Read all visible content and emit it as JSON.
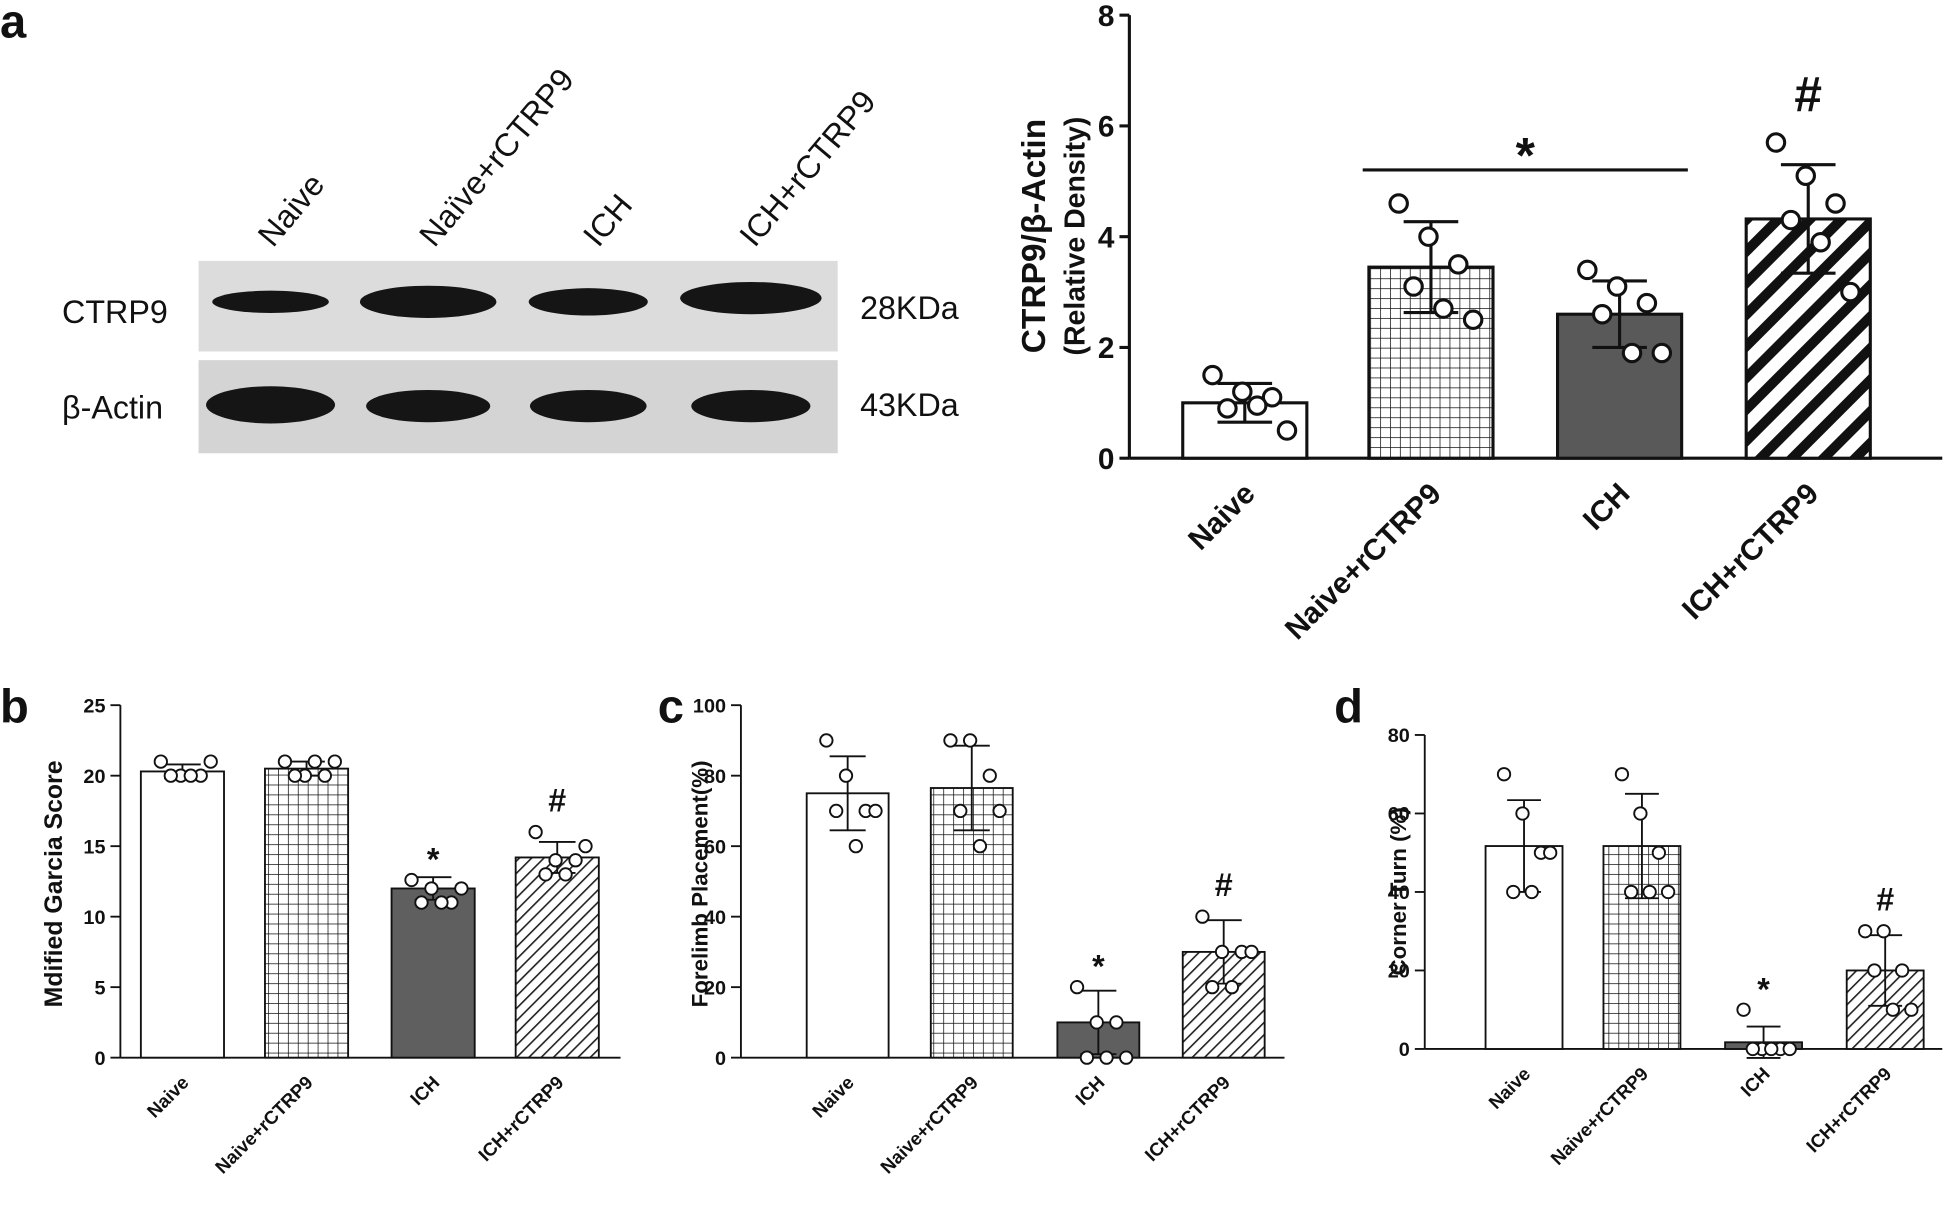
{
  "blot": {
    "panel_label": "a",
    "lanes": [
      "Naive",
      "Naïve+rCTRP9",
      "ICH",
      "ICH+rCTRP9"
    ],
    "rows": [
      {
        "name": "CTRP9",
        "size": "28KDa"
      },
      {
        "name": "β-Actin",
        "size": "43KDa"
      }
    ]
  },
  "chart_data": [
    {
      "type": "bar",
      "ylabel": [
        "CTRP9/β-Actin",
        "(Relative Density)"
      ],
      "categories": [
        "Naive",
        "Naive+rCTRP9",
        "ICH",
        "ICH+rCTRP9"
      ],
      "values": [
        1.0,
        3.45,
        2.6,
        4.32
      ],
      "errors": [
        0.35,
        0.82,
        0.6,
        0.98
      ],
      "points": [
        [
          1.5,
          1.2,
          1.1,
          0.9,
          0.95,
          0.5
        ],
        [
          4.6,
          4.0,
          3.5,
          3.1,
          2.7,
          2.5
        ],
        [
          3.4,
          3.1,
          2.8,
          2.6,
          1.9,
          1.9
        ],
        [
          5.7,
          5.1,
          4.6,
          4.3,
          3.9,
          3.0
        ]
      ],
      "fills": [
        "#ffffff",
        "grid",
        "#595959",
        "hatch-bold"
      ],
      "annotations": [
        {
          "text": "*",
          "categories": [
            "Naive+rCTRP9",
            "ICH"
          ]
        },
        {
          "text": "#",
          "categories": [
            "ICH+rCTRP9"
          ]
        }
      ],
      "ylim": [
        0,
        8
      ],
      "yticks": [
        0,
        2,
        4,
        6,
        8
      ]
    },
    {
      "type": "bar",
      "panel_label": "b",
      "ylabel": "Mdified Garcia  Score",
      "categories": [
        "Naive",
        "Naive+rCTRP9",
        "ICH",
        "ICH+rCTRP9"
      ],
      "values": [
        20.3,
        20.5,
        12.0,
        14.2
      ],
      "errors": [
        0.5,
        0.5,
        0.8,
        1.1
      ],
      "points": [
        [
          21,
          20,
          20,
          20,
          20,
          21
        ],
        [
          21,
          20,
          20,
          20,
          21,
          21
        ],
        [
          12.6,
          12,
          11,
          11,
          11,
          12
        ],
        [
          16,
          14,
          14,
          13,
          13,
          15
        ]
      ],
      "fills": [
        "#ffffff",
        "grid",
        "#5f5f5f",
        "hatch"
      ],
      "annotations": [
        {
          "text": "*",
          "categories": [
            "ICH"
          ]
        },
        {
          "text": "#",
          "categories": [
            "ICH+rCTRP9"
          ]
        }
      ],
      "ylim": [
        0,
        25
      ],
      "yticks": [
        0,
        5,
        10,
        15,
        20,
        25
      ]
    },
    {
      "type": "bar",
      "panel_label": "c",
      "ylabel": "Forelimb  Placement(%)",
      "categories": [
        "Naive",
        "Naive+rCTRP9",
        "ICH",
        "ICH+rCTRP9"
      ],
      "values": [
        75,
        76.5,
        10,
        30
      ],
      "errors": [
        10.5,
        12,
        9,
        9
      ],
      "points": [
        [
          90,
          80,
          70,
          70,
          60,
          70
        ],
        [
          90,
          90,
          80,
          70,
          60,
          70
        ],
        [
          20,
          10,
          10,
          0,
          0,
          0
        ],
        [
          40,
          30,
          30,
          20,
          20,
          30
        ]
      ],
      "fills": [
        "#ffffff",
        "grid",
        "#5f5f5f",
        "hatch"
      ],
      "annotations": [
        {
          "text": "*",
          "categories": [
            "ICH"
          ]
        },
        {
          "text": "#",
          "categories": [
            "ICH+rCTRP9"
          ]
        }
      ],
      "ylim": [
        0,
        100
      ],
      "yticks": [
        0,
        20,
        40,
        60,
        80,
        100
      ]
    },
    {
      "type": "bar",
      "panel_label": "d",
      "ylabel": "Corner Turn (%)",
      "categories": [
        "Naive",
        "Naive+rCTRP9",
        "ICH",
        "ICH+rCTRP9"
      ],
      "values": [
        51.7,
        51.7,
        1.7,
        20
      ],
      "errors": [
        11.7,
        13.3,
        4,
        9
      ],
      "points": [
        [
          70,
          60,
          50,
          40,
          40,
          50
        ],
        [
          70,
          60,
          50,
          40,
          40,
          40
        ],
        [
          10,
          0,
          0,
          0,
          0,
          0
        ],
        [
          30,
          30,
          20,
          20,
          10,
          10
        ]
      ],
      "fills": [
        "#ffffff",
        "grid",
        "#5f5f5f",
        "hatch"
      ],
      "annotations": [
        {
          "text": "*",
          "categories": [
            "ICH"
          ]
        },
        {
          "text": "#",
          "categories": [
            "ICH+rCTRP9"
          ]
        }
      ],
      "ylim": [
        0,
        80
      ],
      "yticks": [
        0,
        20,
        40,
        60,
        80
      ]
    }
  ]
}
